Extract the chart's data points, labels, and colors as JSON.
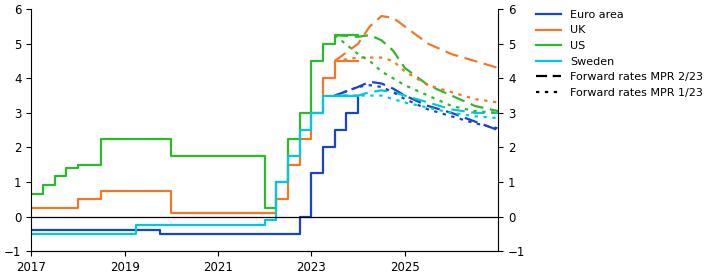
{
  "xlim": [
    2017,
    2027
  ],
  "ylim": [
    -1,
    6
  ],
  "yticks": [
    -1,
    0,
    1,
    2,
    3,
    4,
    5,
    6
  ],
  "xticks": [
    2017,
    2019,
    2021,
    2023,
    2025
  ],
  "colors": {
    "euro_area": "#1845c8",
    "uk": "#f07828",
    "us": "#2db82d",
    "sweden": "#00c8e0"
  },
  "legend_labels": [
    "Euro area",
    "UK",
    "US",
    "Sweden",
    "Forward rates MPR 2/23",
    "Forward rates MPR 1/23"
  ],
  "euro_area_solid": {
    "x": [
      2017.0,
      2019.0,
      2019.75,
      2022.5,
      2022.75,
      2023.0,
      2023.25,
      2023.5,
      2023.75,
      2024.0
    ],
    "y": [
      -0.4,
      -0.4,
      -0.5,
      -0.5,
      0.0,
      1.25,
      2.0,
      2.5,
      3.0,
      3.5
    ]
  },
  "uk_solid": {
    "x": [
      2017.0,
      2017.75,
      2018.0,
      2018.5,
      2019.0,
      2020.0,
      2022.0,
      2022.25,
      2022.5,
      2022.75,
      2023.0,
      2023.25,
      2023.5,
      2024.0
    ],
    "y": [
      0.25,
      0.25,
      0.5,
      0.75,
      0.75,
      0.1,
      0.1,
      0.5,
      1.5,
      2.25,
      3.0,
      4.0,
      4.5,
      4.5
    ]
  },
  "us_solid": {
    "x": [
      2017.0,
      2017.25,
      2017.5,
      2017.75,
      2018.0,
      2018.5,
      2019.0,
      2019.5,
      2020.0,
      2022.0,
      2022.25,
      2022.5,
      2022.75,
      2023.0,
      2023.25,
      2023.5,
      2024.0
    ],
    "y": [
      0.66,
      0.91,
      1.16,
      1.41,
      1.5,
      2.25,
      2.25,
      2.25,
      1.75,
      0.25,
      1.0,
      2.25,
      3.0,
      4.5,
      5.0,
      5.25,
      5.25
    ]
  },
  "sweden_solid": {
    "x": [
      2017.0,
      2019.0,
      2019.25,
      2019.5,
      2022.0,
      2022.25,
      2022.5,
      2022.75,
      2023.0,
      2023.25,
      2023.5,
      2024.0
    ],
    "y": [
      -0.5,
      -0.5,
      -0.25,
      -0.25,
      -0.1,
      1.0,
      1.75,
      2.5,
      3.0,
      3.5,
      3.5,
      3.5
    ]
  },
  "uk_dashed": {
    "x": [
      2023.5,
      2024.0,
      2024.25,
      2024.5,
      2024.75,
      2025.0,
      2025.5,
      2026.0,
      2026.5,
      2027.0
    ],
    "y": [
      4.5,
      5.0,
      5.5,
      5.8,
      5.75,
      5.5,
      5.0,
      4.7,
      4.5,
      4.3
    ]
  },
  "uk_dotted": {
    "x": [
      2023.5,
      2024.0,
      2024.25,
      2024.5,
      2024.75,
      2025.0,
      2025.5,
      2026.0,
      2026.5,
      2027.0
    ],
    "y": [
      4.5,
      4.6,
      4.6,
      4.6,
      4.5,
      4.2,
      3.8,
      3.6,
      3.4,
      3.3
    ]
  },
  "us_dashed": {
    "x": [
      2023.5,
      2024.0,
      2024.25,
      2024.5,
      2024.75,
      2025.0,
      2025.5,
      2026.0,
      2026.5,
      2027.0
    ],
    "y": [
      5.25,
      5.2,
      5.25,
      5.1,
      4.8,
      4.3,
      3.8,
      3.5,
      3.2,
      3.05
    ]
  },
  "us_dotted": {
    "x": [
      2023.5,
      2024.0,
      2024.25,
      2024.5,
      2024.75,
      2025.0,
      2025.5,
      2026.0,
      2026.5,
      2027.0
    ],
    "y": [
      5.25,
      4.7,
      4.5,
      4.2,
      4.0,
      3.8,
      3.5,
      3.2,
      3.05,
      3.0
    ]
  },
  "euro_area_dashed": {
    "x": [
      2023.5,
      2024.0,
      2024.25,
      2024.5,
      2024.75,
      2025.0,
      2025.5,
      2026.0,
      2026.5,
      2027.0
    ],
    "y": [
      3.5,
      3.75,
      3.9,
      3.85,
      3.7,
      3.5,
      3.2,
      3.0,
      2.75,
      2.5
    ]
  },
  "euro_area_dotted": {
    "x": [
      2023.5,
      2024.0,
      2024.25,
      2024.5,
      2024.75,
      2025.0,
      2025.5,
      2026.0,
      2026.5,
      2027.0
    ],
    "y": [
      3.5,
      3.75,
      3.8,
      3.75,
      3.6,
      3.4,
      3.1,
      2.9,
      2.7,
      2.55
    ]
  },
  "sweden_dashed": {
    "x": [
      2023.5,
      2024.0,
      2024.25,
      2024.5,
      2024.75,
      2025.0,
      2025.5,
      2026.0,
      2026.5,
      2027.0
    ],
    "y": [
      3.5,
      3.5,
      3.6,
      3.65,
      3.6,
      3.5,
      3.3,
      3.1,
      3.0,
      3.0
    ]
  },
  "sweden_dotted": {
    "x": [
      2023.5,
      2024.0,
      2024.25,
      2024.5,
      2024.75,
      2025.0,
      2025.5,
      2026.0,
      2026.5,
      2027.0
    ],
    "y": [
      3.5,
      3.5,
      3.5,
      3.5,
      3.4,
      3.3,
      3.15,
      3.0,
      2.9,
      2.85
    ]
  }
}
